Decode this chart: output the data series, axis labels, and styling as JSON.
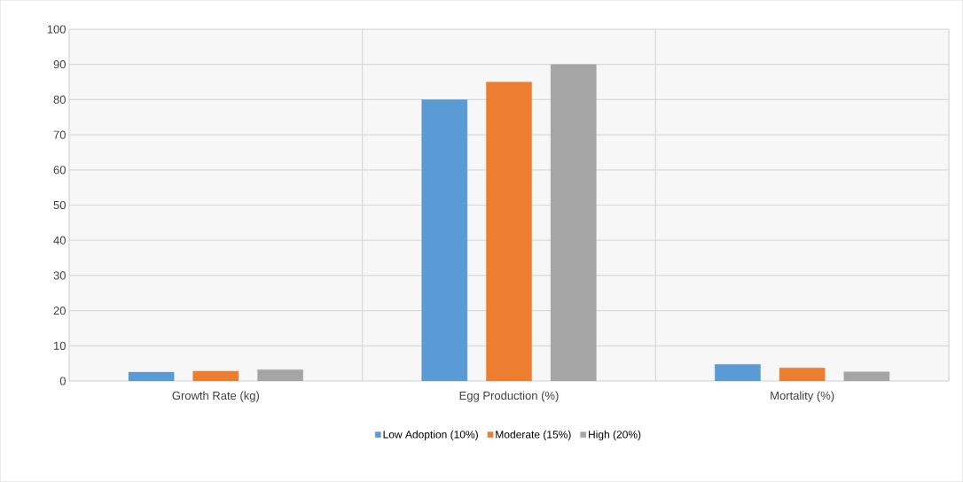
{
  "chart_data": {
    "type": "bar",
    "categories": [
      "Growth Rate (kg)",
      "Egg Production (%)",
      "Mortality (%)"
    ],
    "series": [
      {
        "name": "Low Adoption (10%)",
        "color": "#5b9bd5",
        "values": [
          2.5,
          80,
          4.7
        ]
      },
      {
        "name": "Moderate (15%)",
        "color": "#ed7d31",
        "values": [
          2.8,
          85,
          3.7
        ]
      },
      {
        "name": "High (20%)",
        "color": "#a5a5a5",
        "values": [
          3.2,
          90,
          2.6
        ]
      }
    ],
    "ylim": [
      0,
      100
    ],
    "yticks": [
      0,
      10,
      20,
      30,
      40,
      50,
      60,
      70,
      80,
      90,
      100
    ],
    "grid": true,
    "legend": "bottom"
  }
}
